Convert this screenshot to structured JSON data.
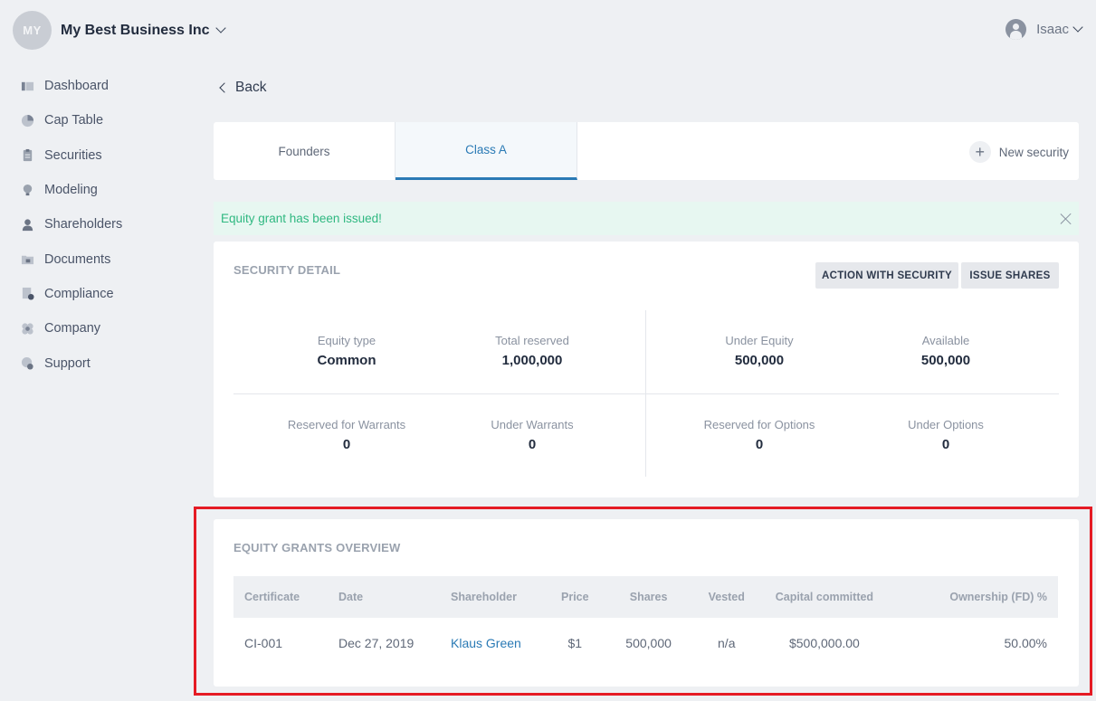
{
  "org": {
    "initials": "MY",
    "name": "My Best Business Inc"
  },
  "user": {
    "name": "Isaac"
  },
  "sidebar": {
    "items": [
      {
        "label": "Dashboard",
        "icon": "dashboard-icon"
      },
      {
        "label": "Cap Table",
        "icon": "pie-chart-icon"
      },
      {
        "label": "Securities",
        "icon": "clipboard-icon"
      },
      {
        "label": "Modeling",
        "icon": "bulb-icon"
      },
      {
        "label": "Shareholders",
        "icon": "person-icon"
      },
      {
        "label": "Documents",
        "icon": "folder-lock-icon"
      },
      {
        "label": "Compliance",
        "icon": "doc-check-icon"
      },
      {
        "label": "Company",
        "icon": "flower-icon"
      },
      {
        "label": "Support",
        "icon": "support-icon"
      }
    ]
  },
  "back_label": "Back",
  "tabs": [
    {
      "label": "Founders",
      "active": false
    },
    {
      "label": "Class A",
      "active": true
    }
  ],
  "new_security_label": "New security",
  "alert": {
    "message": "Equity grant has been issued!"
  },
  "security_detail": {
    "title": "SECURITY DETAIL",
    "action_button": "ACTION WITH SECURITY",
    "issue_button": "ISSUE SHARES",
    "stats": [
      {
        "label": "Equity type",
        "value": "Common"
      },
      {
        "label": "Total reserved",
        "value": "1,000,000"
      },
      {
        "label": "Under Equity",
        "value": "500,000"
      },
      {
        "label": "Available",
        "value": "500,000"
      },
      {
        "label": "Reserved for Warrants",
        "value": "0"
      },
      {
        "label": "Under Warrants",
        "value": "0"
      },
      {
        "label": "Reserved for Options",
        "value": "0"
      },
      {
        "label": "Under Options",
        "value": "0"
      }
    ]
  },
  "grants": {
    "title": "EQUITY GRANTS OVERVIEW",
    "columns": [
      "Certificate",
      "Date",
      "Shareholder",
      "Price",
      "Shares",
      "Vested",
      "Capital committed",
      "Ownership (FD) %"
    ],
    "rows": [
      [
        "CI-001",
        "Dec 27, 2019",
        "Klaus Green",
        "$1",
        "500,000",
        "n/a",
        "$500,000.00",
        "50.00%"
      ]
    ]
  },
  "colors": {
    "accent": "#2a7ab5",
    "success": "#2fb881",
    "highlight": "#e51b24",
    "background": "#eef0f3"
  }
}
